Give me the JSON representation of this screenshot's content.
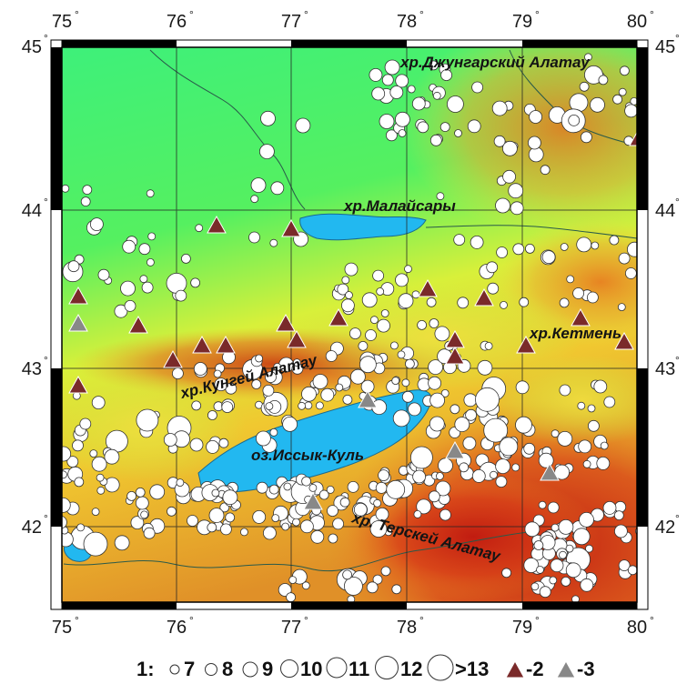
{
  "map": {
    "lon_ticks": [
      "75",
      "76",
      "77",
      "78",
      "79",
      "80"
    ],
    "lat_ticks": [
      "45",
      "44",
      "43",
      "42"
    ],
    "degree_symbol": "°",
    "places": {
      "dzhungar": "хр.Джунгарский Алатау",
      "malaisary": "хр.Малайсары",
      "ketmen": "хр.Кетмень",
      "kungey": "хр.Кунгей Алатау",
      "issyk_kul": "оз.Иссык-Куль",
      "terskey": "хр. Терскей Алатау"
    },
    "lon_range": [
      75,
      80
    ],
    "lat_range": [
      41.5,
      45.1
    ],
    "colors": {
      "water": "#22b8f0",
      "lowland": "#3ff07c",
      "midland": "#f0e030",
      "highland": "#d23a1a",
      "triangle_2": "#7a2a2a",
      "triangle_3": "#888888"
    }
  },
  "legend": {
    "prefix": "1:",
    "sizes": [
      "7",
      "8",
      "9",
      "10",
      "11",
      "12",
      ">13"
    ],
    "tri2": "-2",
    "tri3": "-3"
  }
}
